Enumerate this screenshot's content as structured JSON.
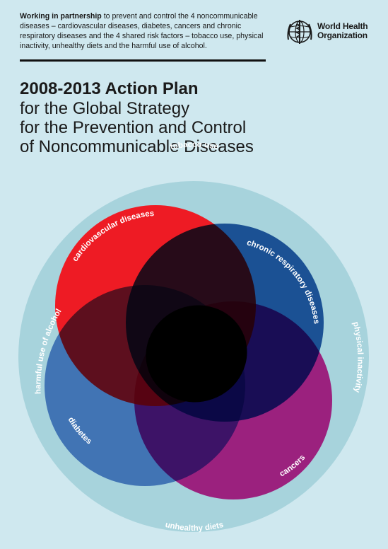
{
  "intro": {
    "bold": "Working in partnership",
    "rest": " to prevent and control the 4 noncommunicable diseases – cardiovascular diseases, diabetes, cancers and chronic respiratory diseases and the 4 shared risk factors – tobacco use, physical inactivity, unhealthy diets and the harmful use of alcohol."
  },
  "logo": {
    "line1": "World Health",
    "line2": "Organization"
  },
  "title": {
    "line1": "2008-2013 Action Plan",
    "line2": "for the Global Strategy",
    "line3": "for the Prevention and Control",
    "line4": "of Noncommunicable Diseases"
  },
  "risk_factors": {
    "tobacco": "tobacco use",
    "physical": "physical inactivity",
    "diets": "unhealthy diets",
    "alcohol": "harmful use of alcohol"
  },
  "diseases": {
    "cardio": "cardiovascular diseases",
    "respiratory": "chronic respiratory diseases",
    "diabetes": "diabetes",
    "cancers": "cancers"
  },
  "colors": {
    "background": "#cfe8ef",
    "outer_ring": "#a7d3dc",
    "cardio": "#ee1b24",
    "respiratory": "#0b4f9f",
    "diabetes": "#4e7cc7",
    "cancers": "#ec1c8c"
  }
}
